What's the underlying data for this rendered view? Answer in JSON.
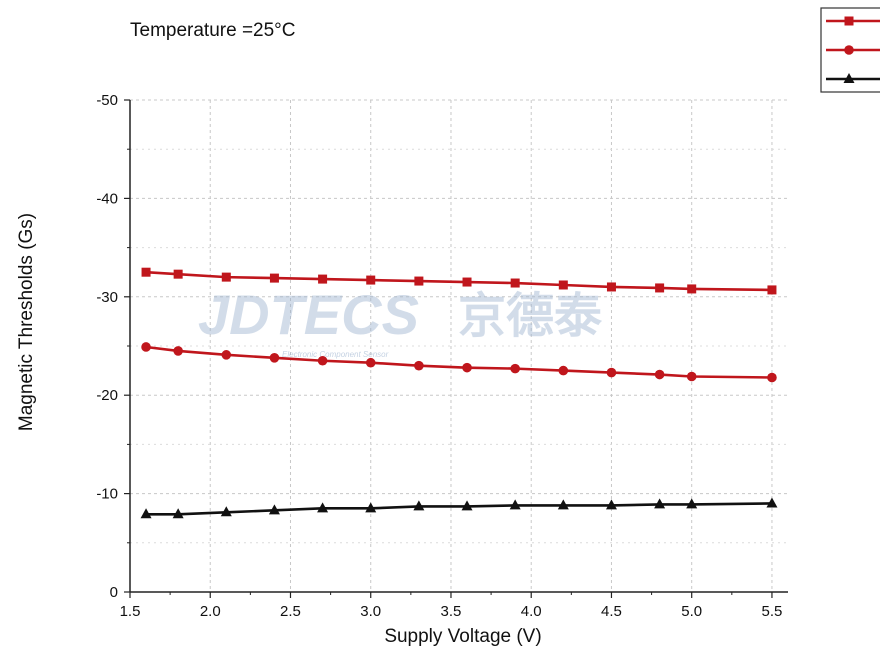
{
  "chart_data": {
    "type": "line",
    "title": "",
    "annotation": "Temperature =25°C",
    "xlabel": "Supply Voltage (V)",
    "ylabel": "Magnetic Thresholds (Gs)",
    "xlim": [
      1.5,
      5.6
    ],
    "ylim": [
      0,
      -50
    ],
    "x_ticks": [
      1.5,
      2.0,
      2.5,
      3.0,
      3.5,
      4.0,
      4.5,
      5.0,
      5.5
    ],
    "x_tick_labels": [
      "1.5",
      "2.0",
      "2.5",
      "3.0",
      "3.5",
      "4.0",
      "4.5",
      "5.0",
      "5.5"
    ],
    "y_ticks": [
      0,
      -10,
      -20,
      -30,
      -40,
      -50
    ],
    "y_tick_labels": [
      "0",
      "-10",
      "-20",
      "-30",
      "-40",
      "-50"
    ],
    "grid": true,
    "legend_position": "top-right",
    "x": [
      1.6,
      1.8,
      2.1,
      2.4,
      2.7,
      3.0,
      3.3,
      3.6,
      3.9,
      4.2,
      4.5,
      4.8,
      5.0,
      5.5
    ],
    "series": [
      {
        "marker": "square",
        "color": "#c0161c",
        "values": [
          -32.5,
          -32.3,
          -32.0,
          -31.9,
          -31.8,
          -31.7,
          -31.6,
          -31.5,
          -31.4,
          -31.2,
          -31.0,
          -30.9,
          -30.8,
          -30.7
        ]
      },
      {
        "marker": "circle",
        "color": "#c0161c",
        "values": [
          -24.9,
          -24.5,
          -24.1,
          -23.8,
          -23.5,
          -23.3,
          -23.0,
          -22.8,
          -22.7,
          -22.5,
          -22.3,
          -22.1,
          -21.9,
          -21.8
        ]
      },
      {
        "marker": "triangle",
        "color": "#111111",
        "values": [
          -7.9,
          -7.9,
          -8.1,
          -8.3,
          -8.5,
          -8.5,
          -8.7,
          -8.7,
          -8.8,
          -8.8,
          -8.8,
          -8.9,
          -8.9,
          -9.0
        ]
      }
    ]
  },
  "watermark": {
    "brand": "JDTECS",
    "cn": "京德泰",
    "tagline": "Electronic Component Sensor"
  }
}
